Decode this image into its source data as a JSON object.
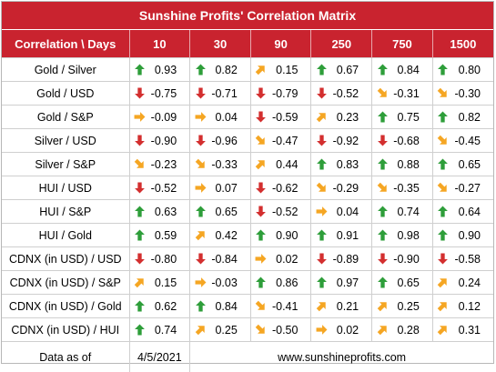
{
  "title": "Sunshine Profits' Correlation Matrix",
  "header": {
    "corner": "Correlation \\ Days",
    "periods": [
      "10",
      "30",
      "90",
      "250",
      "750",
      "1500"
    ]
  },
  "rows": [
    {
      "label": "Gold / Silver",
      "cells": [
        {
          "v": "0.93",
          "a": "up"
        },
        {
          "v": "0.82",
          "a": "up"
        },
        {
          "v": "0.15",
          "a": "upright"
        },
        {
          "v": "0.67",
          "a": "up"
        },
        {
          "v": "0.84",
          "a": "up"
        },
        {
          "v": "0.80",
          "a": "up"
        }
      ]
    },
    {
      "label": "Gold / USD",
      "cells": [
        {
          "v": "-0.75",
          "a": "down"
        },
        {
          "v": "-0.71",
          "a": "down"
        },
        {
          "v": "-0.79",
          "a": "down"
        },
        {
          "v": "-0.52",
          "a": "down"
        },
        {
          "v": "-0.31",
          "a": "downright"
        },
        {
          "v": "-0.30",
          "a": "downright"
        }
      ]
    },
    {
      "label": "Gold / S&P",
      "cells": [
        {
          "v": "-0.09",
          "a": "right"
        },
        {
          "v": "0.04",
          "a": "right"
        },
        {
          "v": "-0.59",
          "a": "down"
        },
        {
          "v": "0.23",
          "a": "upright"
        },
        {
          "v": "0.75",
          "a": "up"
        },
        {
          "v": "0.82",
          "a": "up"
        }
      ]
    },
    {
      "label": "Silver / USD",
      "cells": [
        {
          "v": "-0.90",
          "a": "down"
        },
        {
          "v": "-0.96",
          "a": "down"
        },
        {
          "v": "-0.47",
          "a": "downright"
        },
        {
          "v": "-0.92",
          "a": "down"
        },
        {
          "v": "-0.68",
          "a": "down"
        },
        {
          "v": "-0.45",
          "a": "downright"
        }
      ]
    },
    {
      "label": "Silver / S&P",
      "cells": [
        {
          "v": "-0.23",
          "a": "downright"
        },
        {
          "v": "-0.33",
          "a": "downright"
        },
        {
          "v": "0.44",
          "a": "upright"
        },
        {
          "v": "0.83",
          "a": "up"
        },
        {
          "v": "0.88",
          "a": "up"
        },
        {
          "v": "0.65",
          "a": "up"
        }
      ]
    },
    {
      "label": "HUI / USD",
      "cells": [
        {
          "v": "-0.52",
          "a": "down"
        },
        {
          "v": "0.07",
          "a": "right"
        },
        {
          "v": "-0.62",
          "a": "down"
        },
        {
          "v": "-0.29",
          "a": "downright"
        },
        {
          "v": "-0.35",
          "a": "downright"
        },
        {
          "v": "-0.27",
          "a": "downright"
        }
      ]
    },
    {
      "label": "HUI / S&P",
      "cells": [
        {
          "v": "0.63",
          "a": "up"
        },
        {
          "v": "0.65",
          "a": "up"
        },
        {
          "v": "-0.52",
          "a": "down"
        },
        {
          "v": "0.04",
          "a": "right"
        },
        {
          "v": "0.74",
          "a": "up"
        },
        {
          "v": "0.64",
          "a": "up"
        }
      ]
    },
    {
      "label": "HUI / Gold",
      "cells": [
        {
          "v": "0.59",
          "a": "up"
        },
        {
          "v": "0.42",
          "a": "upright"
        },
        {
          "v": "0.90",
          "a": "up"
        },
        {
          "v": "0.91",
          "a": "up"
        },
        {
          "v": "0.98",
          "a": "up"
        },
        {
          "v": "0.90",
          "a": "up"
        }
      ]
    },
    {
      "label": "CDNX (in USD) / USD",
      "cells": [
        {
          "v": "-0.80",
          "a": "down"
        },
        {
          "v": "-0.84",
          "a": "down"
        },
        {
          "v": "0.02",
          "a": "right"
        },
        {
          "v": "-0.89",
          "a": "down"
        },
        {
          "v": "-0.90",
          "a": "down"
        },
        {
          "v": "-0.58",
          "a": "down"
        }
      ]
    },
    {
      "label": "CDNX (in USD) / S&P",
      "cells": [
        {
          "v": "0.15",
          "a": "upright"
        },
        {
          "v": "-0.03",
          "a": "right"
        },
        {
          "v": "0.86",
          "a": "up"
        },
        {
          "v": "0.97",
          "a": "up"
        },
        {
          "v": "0.65",
          "a": "up"
        },
        {
          "v": "0.24",
          "a": "upright"
        }
      ]
    },
    {
      "label": "CDNX (in USD) / Gold",
      "cells": [
        {
          "v": "0.62",
          "a": "up"
        },
        {
          "v": "0.84",
          "a": "up"
        },
        {
          "v": "-0.41",
          "a": "downright"
        },
        {
          "v": "0.21",
          "a": "upright"
        },
        {
          "v": "0.25",
          "a": "upright"
        },
        {
          "v": "0.12",
          "a": "upright"
        }
      ]
    },
    {
      "label": "CDNX (in USD) / HUI",
      "cells": [
        {
          "v": "0.74",
          "a": "up"
        },
        {
          "v": "0.25",
          "a": "upright"
        },
        {
          "v": "-0.50",
          "a": "downright"
        },
        {
          "v": "0.02",
          "a": "right"
        },
        {
          "v": "0.28",
          "a": "upright"
        },
        {
          "v": "0.31",
          "a": "upright"
        }
      ]
    }
  ],
  "footer": {
    "label": "Data as of",
    "date": "4/5/2021",
    "url": "www.sunshineprofits.com"
  },
  "colors": {
    "header_bg": "#c9232f",
    "up": "#2e9e3a",
    "down": "#d32f2f",
    "side": "#f5a623"
  },
  "icons": {
    "up": "arrow-up-icon",
    "down": "arrow-down-icon",
    "upright": "arrow-up-right-icon",
    "downright": "arrow-down-right-icon",
    "right": "arrow-right-icon"
  }
}
